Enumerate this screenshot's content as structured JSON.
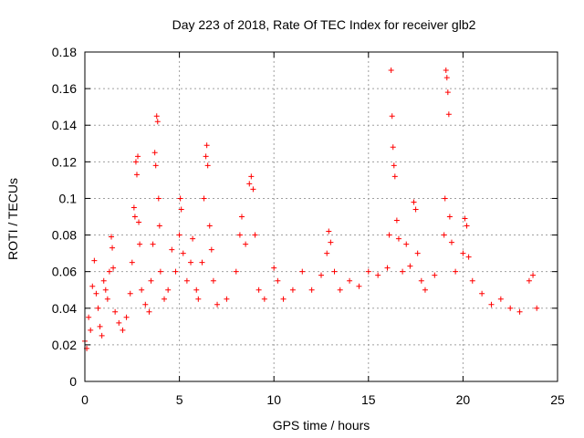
{
  "chart_data": {
    "type": "scatter",
    "title": "Day 223 of 2018, Rate Of TEC Index for receiver glb2",
    "xlabel": "GPS time / hours",
    "ylabel": "ROTI / TECUs",
    "xlim": [
      0,
      25
    ],
    "ylim": [
      0,
      0.18
    ],
    "x_ticks": [
      "0",
      "5",
      "10",
      "15",
      "20",
      "25"
    ],
    "y_ticks": [
      "0",
      "0.02",
      "0.04",
      "0.06",
      "0.08",
      "0.1",
      "0.12",
      "0.14",
      "0.16",
      "0.18"
    ],
    "grid": true,
    "marker": "+",
    "color": "#ff0000",
    "series": [
      {
        "points": [
          [
            0.0,
            0.022
          ],
          [
            0.1,
            0.018
          ],
          [
            0.2,
            0.035
          ],
          [
            0.3,
            0.028
          ],
          [
            0.4,
            0.052
          ],
          [
            0.5,
            0.066
          ],
          [
            0.6,
            0.048
          ],
          [
            0.7,
            0.04
          ],
          [
            0.8,
            0.03
          ],
          [
            0.9,
            0.025
          ],
          [
            1.0,
            0.055
          ],
          [
            1.1,
            0.05
          ],
          [
            1.2,
            0.045
          ],
          [
            1.3,
            0.06
          ],
          [
            1.4,
            0.079
          ],
          [
            1.45,
            0.073
          ],
          [
            1.5,
            0.062
          ],
          [
            1.6,
            0.038
          ],
          [
            1.8,
            0.032
          ],
          [
            2.0,
            0.028
          ],
          [
            2.2,
            0.035
          ],
          [
            2.4,
            0.048
          ],
          [
            2.5,
            0.065
          ],
          [
            2.6,
            0.095
          ],
          [
            2.65,
            0.09
          ],
          [
            2.7,
            0.12
          ],
          [
            2.75,
            0.113
          ],
          [
            2.8,
            0.123
          ],
          [
            2.85,
            0.087
          ],
          [
            2.9,
            0.075
          ],
          [
            3.0,
            0.05
          ],
          [
            3.2,
            0.042
          ],
          [
            3.4,
            0.038
          ],
          [
            3.5,
            0.055
          ],
          [
            3.6,
            0.075
          ],
          [
            3.7,
            0.125
          ],
          [
            3.75,
            0.118
          ],
          [
            3.8,
            0.145
          ],
          [
            3.85,
            0.142
          ],
          [
            3.9,
            0.1
          ],
          [
            3.95,
            0.085
          ],
          [
            4.0,
            0.06
          ],
          [
            4.2,
            0.045
          ],
          [
            4.4,
            0.05
          ],
          [
            4.6,
            0.072
          ],
          [
            4.8,
            0.06
          ],
          [
            5.0,
            0.08
          ],
          [
            5.05,
            0.1
          ],
          [
            5.1,
            0.094
          ],
          [
            5.2,
            0.07
          ],
          [
            5.4,
            0.055
          ],
          [
            5.6,
            0.065
          ],
          [
            5.7,
            0.078
          ],
          [
            5.9,
            0.05
          ],
          [
            6.0,
            0.045
          ],
          [
            6.2,
            0.065
          ],
          [
            6.3,
            0.1
          ],
          [
            6.4,
            0.123
          ],
          [
            6.45,
            0.129
          ],
          [
            6.5,
            0.118
          ],
          [
            6.6,
            0.085
          ],
          [
            6.7,
            0.072
          ],
          [
            6.8,
            0.055
          ],
          [
            7.0,
            0.042
          ],
          [
            7.5,
            0.045
          ],
          [
            8.0,
            0.06
          ],
          [
            8.2,
            0.08
          ],
          [
            8.3,
            0.09
          ],
          [
            8.5,
            0.075
          ],
          [
            8.7,
            0.108
          ],
          [
            8.8,
            0.112
          ],
          [
            8.9,
            0.105
          ],
          [
            9.0,
            0.08
          ],
          [
            9.2,
            0.05
          ],
          [
            9.5,
            0.045
          ],
          [
            10.0,
            0.062
          ],
          [
            10.2,
            0.055
          ],
          [
            10.5,
            0.045
          ],
          [
            11.0,
            0.05
          ],
          [
            11.5,
            0.06
          ],
          [
            12.0,
            0.05
          ],
          [
            12.5,
            0.058
          ],
          [
            12.8,
            0.07
          ],
          [
            12.9,
            0.082
          ],
          [
            13.0,
            0.076
          ],
          [
            13.2,
            0.06
          ],
          [
            13.5,
            0.05
          ],
          [
            14.0,
            0.055
          ],
          [
            14.5,
            0.052
          ],
          [
            15.0,
            0.06
          ],
          [
            15.5,
            0.058
          ],
          [
            16.0,
            0.062
          ],
          [
            16.1,
            0.08
          ],
          [
            16.2,
            0.17
          ],
          [
            16.25,
            0.145
          ],
          [
            16.3,
            0.128
          ],
          [
            16.35,
            0.118
          ],
          [
            16.4,
            0.112
          ],
          [
            16.5,
            0.088
          ],
          [
            16.6,
            0.078
          ],
          [
            16.8,
            0.06
          ],
          [
            17.0,
            0.075
          ],
          [
            17.2,
            0.063
          ],
          [
            17.4,
            0.098
          ],
          [
            17.5,
            0.094
          ],
          [
            17.6,
            0.07
          ],
          [
            17.8,
            0.055
          ],
          [
            18.0,
            0.05
          ],
          [
            18.5,
            0.058
          ],
          [
            19.0,
            0.08
          ],
          [
            19.05,
            0.1
          ],
          [
            19.1,
            0.17
          ],
          [
            19.15,
            0.166
          ],
          [
            19.2,
            0.158
          ],
          [
            19.25,
            0.146
          ],
          [
            19.3,
            0.09
          ],
          [
            19.4,
            0.076
          ],
          [
            19.6,
            0.06
          ],
          [
            20.0,
            0.07
          ],
          [
            20.1,
            0.089
          ],
          [
            20.2,
            0.085
          ],
          [
            20.3,
            0.068
          ],
          [
            20.5,
            0.055
          ],
          [
            21.0,
            0.048
          ],
          [
            21.5,
            0.042
          ],
          [
            22.0,
            0.045
          ],
          [
            22.5,
            0.04
          ],
          [
            23.0,
            0.038
          ],
          [
            23.5,
            0.055
          ],
          [
            23.7,
            0.058
          ],
          [
            23.9,
            0.04
          ]
        ]
      }
    ]
  }
}
